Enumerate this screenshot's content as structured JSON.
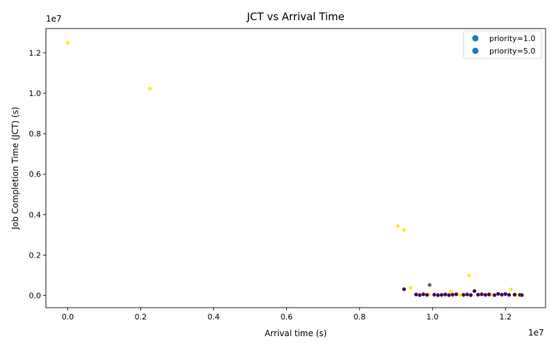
{
  "chart_data": {
    "type": "scatter",
    "title": "JCT vs Arrival Time",
    "xlabel": "Arrival time (s)",
    "ylabel": "Job Completion Time (JCT) (s)",
    "x_offset_label": "1e7",
    "y_offset_label": "1e7",
    "x_scale": 10000000,
    "y_scale": 10000000,
    "xlim": [
      -0.06,
      1.31
    ],
    "ylim": [
      -0.06,
      1.32
    ],
    "xticks": [
      0.0,
      0.2,
      0.4,
      0.6,
      0.8,
      1.0,
      1.2
    ],
    "xtick_labels": [
      "0.0",
      "0.2",
      "0.4",
      "0.6",
      "0.8",
      "1.0",
      "1.2"
    ],
    "yticks": [
      0.0,
      0.2,
      0.4,
      0.6,
      0.8,
      1.0,
      1.2
    ],
    "ytick_labels": [
      "0.0",
      "0.2",
      "0.4",
      "0.6",
      "0.8",
      "1.0",
      "1.2"
    ],
    "grid": false,
    "legend_position": "top-right",
    "legend": [
      {
        "label": "priority=1.0",
        "color": "#1f77b4"
      },
      {
        "label": "priority=5.0",
        "color": "#1f77b4"
      }
    ],
    "colors": {
      "priority_1": "#440154",
      "priority_5": "#fde725",
      "mid": "#7b4f7f"
    },
    "series": [
      {
        "priority": 5.0,
        "points": [
          [
            0.0,
            1.25
          ],
          [
            0.225,
            1.022
          ],
          [
            0.905,
            0.343
          ],
          [
            0.922,
            0.324
          ],
          [
            1.1,
            0.099
          ],
          [
            0.94,
            0.037
          ],
          [
            1.05,
            0.02
          ],
          [
            1.215,
            0.03
          ],
          [
            0.99,
            0.004
          ],
          [
            1.075,
            0.003
          ],
          [
            1.16,
            0.003
          ],
          [
            1.23,
            0.002
          ]
        ]
      },
      {
        "priority": 1.0,
        "points": [
          [
            0.922,
            0.031
          ],
          [
            1.115,
            0.022
          ],
          [
            0.955,
            0.005
          ],
          [
            0.965,
            0.002
          ],
          [
            0.975,
            0.006
          ],
          [
            0.985,
            0.003
          ],
          [
            1.005,
            0.004
          ],
          [
            1.015,
            0.002
          ],
          [
            1.025,
            0.003
          ],
          [
            1.035,
            0.005
          ],
          [
            1.045,
            0.002
          ],
          [
            1.055,
            0.004
          ],
          [
            1.065,
            0.006
          ],
          [
            1.085,
            0.003
          ],
          [
            1.095,
            0.005
          ],
          [
            1.105,
            0.002
          ],
          [
            1.125,
            0.004
          ],
          [
            1.135,
            0.006
          ],
          [
            1.145,
            0.003
          ],
          [
            1.155,
            0.005
          ],
          [
            1.17,
            0.002
          ],
          [
            1.18,
            0.008
          ],
          [
            1.19,
            0.004
          ],
          [
            1.2,
            0.007
          ],
          [
            1.21,
            0.003
          ],
          [
            1.225,
            0.004
          ],
          [
            1.24,
            0.003
          ],
          [
            1.245,
            0.002
          ]
        ]
      },
      {
        "priority": "mid",
        "points": [
          [
            0.992,
            0.052
          ]
        ]
      }
    ]
  }
}
